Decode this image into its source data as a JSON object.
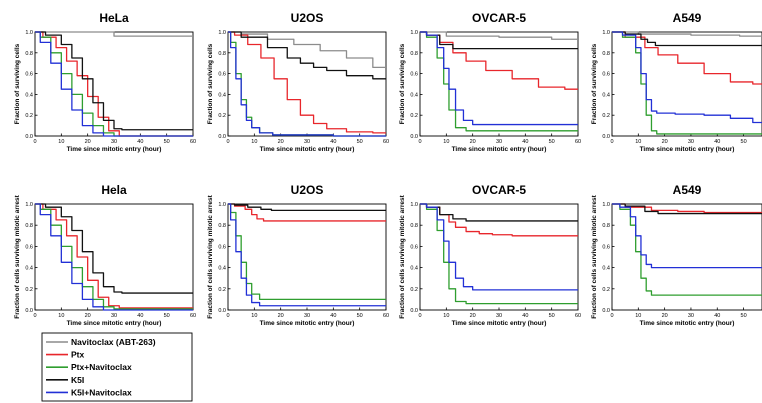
{
  "colors": {
    "navitoclax": "#8c8c8c",
    "ptx": "#e8262b",
    "ptx_navitoclax": "#2f9e2f",
    "k5i": "#111111",
    "k5i_navitoclax": "#2230d6"
  },
  "legend": {
    "items": [
      {
        "key": "navitoclax",
        "label": "Navitoclax (ABT-263)"
      },
      {
        "key": "ptx",
        "label": "Ptx"
      },
      {
        "key": "ptx_navitoclax",
        "label": "Ptx+Navitoclax"
      },
      {
        "key": "k5i",
        "label": "K5I"
      },
      {
        "key": "k5i_navitoclax",
        "label": "K5I+Navitoclax"
      }
    ]
  },
  "chart_data": [
    {
      "type": "line",
      "title": "HeLa",
      "xlabel": "Time since mitotic entry (hour)",
      "ylabel": "Fraction of surviving cells",
      "xlim": [
        0,
        60
      ],
      "ylim": [
        0,
        1.0
      ],
      "xticks": [
        "0",
        "10",
        "20",
        "30",
        "40",
        "50",
        "60"
      ],
      "yticks": [
        "0.0",
        "0.2",
        "0.4",
        "0.6",
        "0.8",
        "1.0"
      ],
      "series": [
        {
          "key": "navitoclax",
          "x": [
            0,
            60
          ],
          "y": [
            1.0,
            0.96
          ]
        },
        {
          "key": "ptx",
          "x": [
            0,
            6,
            10,
            14,
            18,
            22,
            26,
            30,
            34,
            60
          ],
          "y": [
            1.0,
            0.95,
            0.85,
            0.72,
            0.58,
            0.38,
            0.18,
            0.05,
            0.0,
            0.0
          ]
        },
        {
          "key": "ptx_navitoclax",
          "x": [
            0,
            4,
            8,
            12,
            16,
            20,
            24,
            28,
            32,
            60
          ],
          "y": [
            1.0,
            0.95,
            0.8,
            0.6,
            0.4,
            0.22,
            0.1,
            0.03,
            0.0,
            0.0
          ]
        },
        {
          "key": "k5i",
          "x": [
            0,
            8,
            12,
            16,
            20,
            24,
            28,
            32,
            34,
            60
          ],
          "y": [
            1.0,
            0.97,
            0.88,
            0.75,
            0.55,
            0.32,
            0.15,
            0.07,
            0.06,
            0.06
          ]
        },
        {
          "key": "k5i_navitoclax",
          "x": [
            0,
            4,
            8,
            12,
            16,
            20,
            24,
            28,
            60
          ],
          "y": [
            1.0,
            0.9,
            0.7,
            0.45,
            0.25,
            0.1,
            0.03,
            0.0,
            0.0
          ]
        }
      ]
    },
    {
      "type": "line",
      "title": "U2OS",
      "xlabel": "Time since mitotic entry (hour)",
      "ylabel": "Fraction of surviving cells",
      "xlim": [
        0,
        60
      ],
      "ylim": [
        0,
        1.0
      ],
      "xticks": [
        "0",
        "10",
        "20",
        "30",
        "40",
        "50",
        "60"
      ],
      "yticks": [
        "0.0",
        "0.2",
        "0.4",
        "0.6",
        "0.8",
        "1.0"
      ],
      "series": [
        {
          "key": "navitoclax",
          "x": [
            0,
            10,
            20,
            30,
            40,
            50,
            60
          ],
          "y": [
            1.0,
            0.98,
            0.93,
            0.88,
            0.82,
            0.75,
            0.66
          ]
        },
        {
          "key": "ptx",
          "x": [
            0,
            5,
            10,
            15,
            20,
            25,
            30,
            35,
            40,
            50,
            60
          ],
          "y": [
            1.0,
            0.97,
            0.88,
            0.75,
            0.55,
            0.35,
            0.2,
            0.12,
            0.07,
            0.04,
            0.03
          ]
        },
        {
          "key": "ptx_navitoclax",
          "x": [
            0,
            2,
            4,
            6,
            8,
            10,
            14,
            20,
            60
          ],
          "y": [
            1.0,
            0.9,
            0.6,
            0.35,
            0.18,
            0.08,
            0.03,
            0.01,
            0.0
          ]
        },
        {
          "key": "k5i",
          "x": [
            0,
            10,
            20,
            25,
            30,
            35,
            40,
            50,
            60
          ],
          "y": [
            1.0,
            0.95,
            0.85,
            0.75,
            0.7,
            0.66,
            0.63,
            0.58,
            0.55
          ]
        },
        {
          "key": "k5i_navitoclax",
          "x": [
            0,
            2,
            4,
            6,
            8,
            10,
            14,
            20,
            60
          ],
          "y": [
            1.0,
            0.85,
            0.55,
            0.3,
            0.15,
            0.08,
            0.03,
            0.01,
            0.0
          ]
        }
      ]
    },
    {
      "type": "line",
      "title": "OVCAR-5",
      "xlabel": "Time since mitotic entry (hour)",
      "ylabel": "Fraction of surviving cells",
      "xlim": [
        0,
        60
      ],
      "ylim": [
        0,
        1.0
      ],
      "xticks": [
        "0",
        "10",
        "20",
        "30",
        "40",
        "50",
        "60"
      ],
      "yticks": [
        "0.0",
        "0.2",
        "0.4",
        "0.6",
        "0.8",
        "1.0"
      ],
      "series": [
        {
          "key": "navitoclax",
          "x": [
            0,
            20,
            40,
            60
          ],
          "y": [
            1.0,
            0.96,
            0.95,
            0.93
          ]
        },
        {
          "key": "ptx",
          "x": [
            0,
            5,
            10,
            15,
            20,
            30,
            40,
            50,
            60
          ],
          "y": [
            1.0,
            0.97,
            0.9,
            0.8,
            0.72,
            0.63,
            0.55,
            0.47,
            0.45
          ]
        },
        {
          "key": "ptx_navitoclax",
          "x": [
            0,
            5,
            8,
            10,
            12,
            15,
            20,
            60
          ],
          "y": [
            1.0,
            0.95,
            0.75,
            0.5,
            0.25,
            0.08,
            0.05,
            0.05
          ]
        },
        {
          "key": "k5i",
          "x": [
            0,
            5,
            10,
            15,
            60
          ],
          "y": [
            1.0,
            0.97,
            0.88,
            0.84,
            0.84
          ]
        },
        {
          "key": "k5i_navitoclax",
          "x": [
            0,
            5,
            8,
            10,
            12,
            15,
            18,
            22,
            60
          ],
          "y": [
            1.0,
            0.97,
            0.85,
            0.65,
            0.45,
            0.25,
            0.15,
            0.11,
            0.11
          ]
        }
      ]
    },
    {
      "type": "line",
      "title": "A549",
      "xlabel": "Time since mitotic entry (hour)",
      "ylabel": "Fraction of surviving cells",
      "xlim": [
        0,
        57
      ],
      "ylim": [
        0,
        1.0
      ],
      "xticks": [
        "0",
        "10",
        "20",
        "30",
        "40",
        "50"
      ],
      "yticks": [
        "0.0",
        "0.2",
        "0.4",
        "0.6",
        "0.8",
        "1.0"
      ],
      "series": [
        {
          "key": "navitoclax",
          "x": [
            0,
            20,
            40,
            57
          ],
          "y": [
            1.0,
            0.98,
            0.97,
            0.96
          ]
        },
        {
          "key": "ptx",
          "x": [
            0,
            10,
            15,
            20,
            30,
            40,
            50,
            57
          ],
          "y": [
            1.0,
            0.95,
            0.85,
            0.78,
            0.7,
            0.6,
            0.52,
            0.5
          ]
        },
        {
          "key": "ptx_navitoclax",
          "x": [
            0,
            8,
            10,
            12,
            14,
            16,
            18,
            20,
            57
          ],
          "y": [
            1.0,
            0.95,
            0.8,
            0.5,
            0.2,
            0.05,
            0.02,
            0.02,
            0.02
          ]
        },
        {
          "key": "k5i",
          "x": [
            0,
            10,
            12,
            15,
            18,
            57
          ],
          "y": [
            1.0,
            0.98,
            0.93,
            0.9,
            0.87,
            0.87
          ]
        },
        {
          "key": "k5i_navitoclax",
          "x": [
            0,
            8,
            10,
            12,
            14,
            16,
            18,
            30,
            40,
            50,
            57
          ],
          "y": [
            1.0,
            0.97,
            0.85,
            0.6,
            0.35,
            0.24,
            0.22,
            0.21,
            0.2,
            0.17,
            0.13
          ]
        }
      ]
    },
    {
      "type": "line",
      "title": "Hela",
      "xlabel": "Time since mitotic entry (hour)",
      "ylabel": "Fraction of cells surviving mitotic arrest",
      "xlim": [
        0,
        60
      ],
      "ylim": [
        0,
        1.0
      ],
      "xticks": [
        "0",
        "10",
        "20",
        "30",
        "40",
        "50",
        "60"
      ],
      "yticks": [
        "0.0",
        "0.2",
        "0.4",
        "0.6",
        "0.8",
        "1.0"
      ],
      "series": [
        {
          "key": "ptx",
          "x": [
            0,
            6,
            10,
            14,
            18,
            22,
            26,
            30,
            34,
            60
          ],
          "y": [
            1.0,
            0.95,
            0.85,
            0.7,
            0.5,
            0.28,
            0.12,
            0.04,
            0.02,
            0.02
          ]
        },
        {
          "key": "ptx_navitoclax",
          "x": [
            0,
            4,
            8,
            12,
            16,
            20,
            24,
            28,
            32,
            60
          ],
          "y": [
            1.0,
            0.95,
            0.8,
            0.6,
            0.4,
            0.22,
            0.1,
            0.03,
            0.01,
            0.01
          ]
        },
        {
          "key": "k5i",
          "x": [
            0,
            8,
            12,
            16,
            20,
            24,
            28,
            32,
            34,
            60
          ],
          "y": [
            1.0,
            0.97,
            0.88,
            0.75,
            0.55,
            0.35,
            0.22,
            0.17,
            0.16,
            0.16
          ]
        },
        {
          "key": "k5i_navitoclax",
          "x": [
            0,
            4,
            8,
            12,
            16,
            20,
            24,
            28,
            60
          ],
          "y": [
            1.0,
            0.9,
            0.7,
            0.45,
            0.25,
            0.1,
            0.03,
            0.0,
            0.0
          ]
        }
      ]
    },
    {
      "type": "line",
      "title": "U2OS",
      "xlabel": "Time since mitotic entry (hour)",
      "ylabel": "Fraction of cells surviving mitotic arrest",
      "xlim": [
        0,
        60
      ],
      "ylim": [
        0,
        1.0
      ],
      "xticks": [
        "0",
        "10",
        "20",
        "30",
        "40",
        "50",
        "60"
      ],
      "yticks": [
        "0.0",
        "0.2",
        "0.4",
        "0.6",
        "0.8",
        "1.0"
      ],
      "series": [
        {
          "key": "ptx",
          "x": [
            0,
            5,
            8,
            10,
            12,
            15,
            60
          ],
          "y": [
            1.0,
            0.98,
            0.95,
            0.9,
            0.86,
            0.84,
            0.84
          ]
        },
        {
          "key": "ptx_navitoclax",
          "x": [
            0,
            2,
            4,
            6,
            8,
            10,
            14,
            60
          ],
          "y": [
            1.0,
            0.92,
            0.7,
            0.45,
            0.25,
            0.15,
            0.1,
            0.1
          ]
        },
        {
          "key": "k5i",
          "x": [
            0,
            5,
            10,
            15,
            18,
            20,
            60
          ],
          "y": [
            1.0,
            0.99,
            0.97,
            0.95,
            0.94,
            0.94,
            0.94
          ]
        },
        {
          "key": "k5i_navitoclax",
          "x": [
            0,
            2,
            4,
            6,
            8,
            10,
            14,
            60
          ],
          "y": [
            1.0,
            0.85,
            0.55,
            0.3,
            0.14,
            0.07,
            0.04,
            0.04
          ]
        }
      ]
    },
    {
      "type": "line",
      "title": "OVCAR-5",
      "xlabel": "Time since mitotic entry (hour)",
      "ylabel": "Fraction of cells surviving mitotic arrest",
      "xlim": [
        0,
        60
      ],
      "ylim": [
        0,
        1.0
      ],
      "xticks": [
        "0",
        "10",
        "20",
        "30",
        "40",
        "50",
        "60"
      ],
      "yticks": [
        "0.0",
        "0.2",
        "0.4",
        "0.6",
        "0.8",
        "1.0"
      ],
      "series": [
        {
          "key": "ptx",
          "x": [
            0,
            5,
            10,
            12,
            15,
            20,
            25,
            30,
            40,
            60
          ],
          "y": [
            1.0,
            0.97,
            0.9,
            0.83,
            0.78,
            0.74,
            0.72,
            0.71,
            0.7,
            0.7
          ]
        },
        {
          "key": "ptx_navitoclax",
          "x": [
            0,
            5,
            8,
            10,
            12,
            15,
            20,
            60
          ],
          "y": [
            1.0,
            0.95,
            0.75,
            0.45,
            0.2,
            0.08,
            0.06,
            0.06
          ]
        },
        {
          "key": "k5i",
          "x": [
            0,
            5,
            10,
            15,
            20,
            60
          ],
          "y": [
            1.0,
            0.97,
            0.9,
            0.86,
            0.84,
            0.84
          ]
        },
        {
          "key": "k5i_navitoclax",
          "x": [
            0,
            5,
            8,
            10,
            12,
            15,
            18,
            22,
            60
          ],
          "y": [
            1.0,
            0.97,
            0.85,
            0.65,
            0.45,
            0.3,
            0.22,
            0.19,
            0.19
          ]
        }
      ]
    },
    {
      "type": "line",
      "title": "A549",
      "xlabel": "Time since mitotic entry (hour)",
      "ylabel": "Fraction of cells surviving mitotic arrest",
      "xlim": [
        0,
        57
      ],
      "ylim": [
        0,
        1.0
      ],
      "xticks": [
        "0",
        "10",
        "20",
        "30",
        "40",
        "50"
      ],
      "yticks": [
        "0.0",
        "0.2",
        "0.4",
        "0.6",
        "0.8",
        "1.0"
      ],
      "series": [
        {
          "key": "ptx",
          "x": [
            0,
            10,
            20,
            30,
            40,
            57
          ],
          "y": [
            1.0,
            0.97,
            0.94,
            0.93,
            0.92,
            0.92
          ]
        },
        {
          "key": "ptx_navitoclax",
          "x": [
            0,
            6,
            8,
            10,
            12,
            14,
            16,
            57
          ],
          "y": [
            1.0,
            0.95,
            0.8,
            0.55,
            0.3,
            0.18,
            0.14,
            0.14
          ]
        },
        {
          "key": "k5i",
          "x": [
            0,
            10,
            15,
            20,
            57
          ],
          "y": [
            1.0,
            0.98,
            0.93,
            0.91,
            0.91
          ]
        },
        {
          "key": "k5i_navitoclax",
          "x": [
            0,
            6,
            8,
            10,
            12,
            14,
            16,
            57
          ],
          "y": [
            1.0,
            0.97,
            0.88,
            0.7,
            0.52,
            0.43,
            0.4,
            0.4
          ]
        }
      ]
    }
  ]
}
